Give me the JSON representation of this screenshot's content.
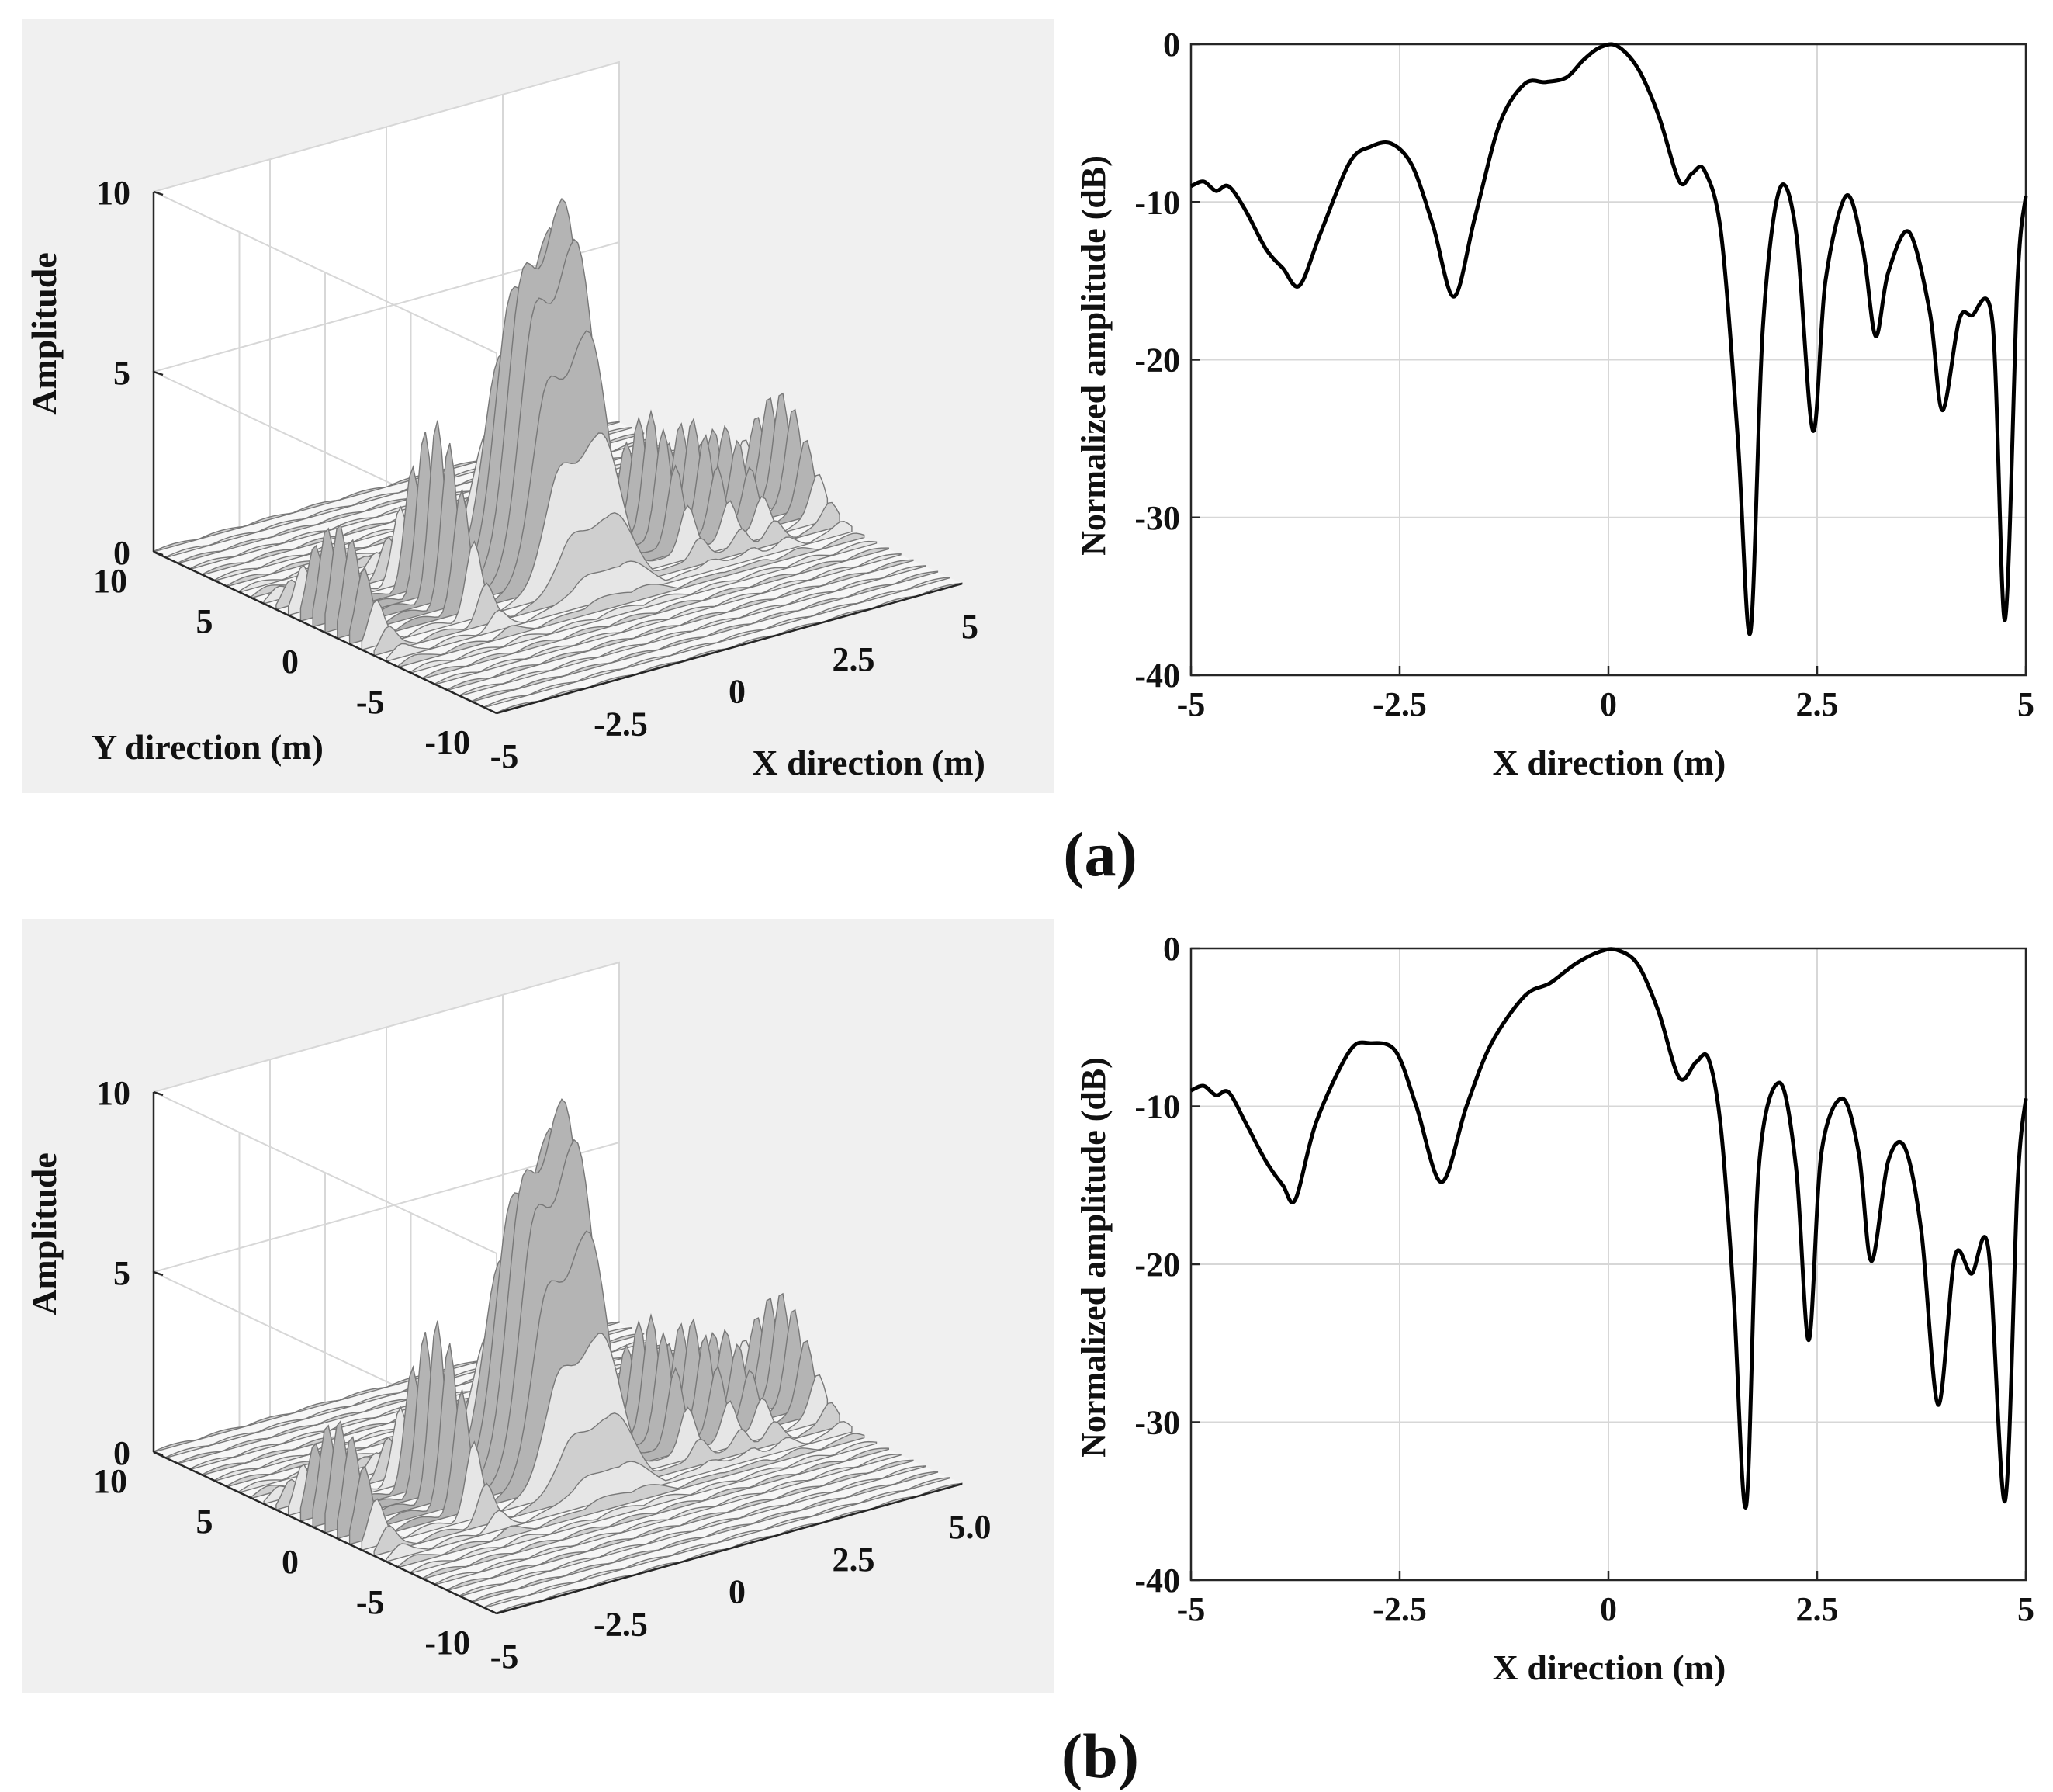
{
  "colors": {
    "panel_bg": "#f0f0f0",
    "grid": "#d7d7d7",
    "axis": "#262626",
    "line": "#000000",
    "surface_light": "#e6e6e6",
    "surface_mid": "#b4b4b4",
    "surface_dark": "#787878"
  },
  "panel_labels": {
    "a": "(a)",
    "b": "(b)"
  },
  "chart_data": [
    {
      "id": "a-3d",
      "type": "surface3d",
      "title": "",
      "zlabel": "Amplitude",
      "ylabel": "Y direction (m)",
      "xlabel": "X direction (m)",
      "z_ticks": [
        "0",
        "5",
        "10"
      ],
      "y_ticks": [
        "10",
        "5",
        "0",
        "-5",
        "-10"
      ],
      "x_ticks": [
        "-5",
        "-2.5",
        "0",
        "2.5",
        "5"
      ],
      "zlim": [
        0,
        10
      ],
      "ylim": [
        -10,
        10
      ],
      "xlim": [
        -5,
        5
      ],
      "peaks": [
        {
          "x": 0.1,
          "amplitude": 10.0
        },
        {
          "x": -0.8,
          "amplitude": 7.2
        },
        {
          "x": -2.6,
          "amplitude": 4.8
        },
        {
          "x": -4.7,
          "amplitude": 2.7
        },
        {
          "x": 2.0,
          "amplitude": 3.6
        },
        {
          "x": 2.9,
          "amplitude": 3.0
        },
        {
          "x": 3.6,
          "amplitude": 2.4
        },
        {
          "x": 4.8,
          "amplitude": 3.0
        }
      ]
    },
    {
      "id": "a-2d",
      "type": "line",
      "title": "",
      "xlabel": "X direction (m)",
      "ylabel": "Normalized amplitude (dB)",
      "xlim": [
        -5,
        5
      ],
      "ylim": [
        -40,
        0
      ],
      "x_ticks": [
        "-5",
        "-2.5",
        "0",
        "2.5",
        "5"
      ],
      "y_ticks": [
        "0",
        "-10",
        "-20",
        "-30",
        "-40"
      ],
      "grid": true,
      "series": [
        {
          "name": "profile",
          "x": [
            -5,
            -4.85,
            -4.7,
            -4.55,
            -4.35,
            -4.1,
            -3.9,
            -3.7,
            -3.45,
            -3.1,
            -2.85,
            -2.6,
            -2.35,
            -2.1,
            -1.85,
            -1.6,
            -1.3,
            -1.0,
            -0.75,
            -0.5,
            -0.3,
            -0.1,
            0.1,
            0.35,
            0.6,
            0.85,
            1.0,
            1.15,
            1.35,
            1.55,
            1.7,
            1.85,
            2.05,
            2.25,
            2.45,
            2.6,
            2.85,
            3.05,
            3.2,
            3.35,
            3.6,
            3.85,
            4.0,
            4.2,
            4.35,
            4.6,
            4.75,
            4.9,
            5.0
          ],
          "y": [
            -9.0,
            -8.7,
            -9.3,
            -9.0,
            -10.5,
            -13.0,
            -14.2,
            -15.3,
            -12.0,
            -7.5,
            -6.5,
            -6.3,
            -7.7,
            -11.5,
            -16.0,
            -11.0,
            -5.0,
            -2.5,
            -2.4,
            -2.1,
            -1.0,
            -0.2,
            -0.1,
            -1.5,
            -4.5,
            -8.7,
            -8.2,
            -8.0,
            -12.0,
            -25.0,
            -37.3,
            -18.0,
            -9.2,
            -12.0,
            -24.5,
            -15.0,
            -9.6,
            -13.0,
            -18.5,
            -14.5,
            -11.9,
            -17.0,
            -23.2,
            -17.5,
            -17.2,
            -17.6,
            -36.5,
            -15.0,
            -9.6
          ]
        }
      ]
    },
    {
      "id": "b-3d",
      "type": "surface3d",
      "title": "",
      "zlabel": "Amplitude",
      "ylabel": "",
      "xlabel": "",
      "z_ticks": [
        "0",
        "5",
        "10"
      ],
      "y_ticks": [
        "10",
        "5",
        "0",
        "-5",
        "-10"
      ],
      "x_ticks": [
        "-5",
        "-2.5",
        "0",
        "2.5",
        "5.0"
      ],
      "zlim": [
        0,
        10
      ],
      "ylim": [
        -10,
        10
      ],
      "xlim": [
        -5,
        5
      ],
      "peaks": [
        {
          "x": 0.1,
          "amplitude": 10.0
        },
        {
          "x": -0.8,
          "amplitude": 7.0
        },
        {
          "x": -2.6,
          "amplitude": 4.8
        },
        {
          "x": -4.7,
          "amplitude": 2.8
        },
        {
          "x": 2.0,
          "amplitude": 3.5
        },
        {
          "x": 2.9,
          "amplitude": 3.0
        },
        {
          "x": 3.6,
          "amplitude": 2.3
        },
        {
          "x": 4.8,
          "amplitude": 3.0
        }
      ]
    },
    {
      "id": "b-2d",
      "type": "line",
      "title": "",
      "xlabel": "X direction (m)",
      "ylabel": "Normalized amplitude (dB)",
      "xlim": [
        -5,
        5
      ],
      "ylim": [
        -40,
        0
      ],
      "x_ticks": [
        "-5",
        "-2.5",
        "0",
        "2.5",
        "5"
      ],
      "y_ticks": [
        "0",
        "-10",
        "-20",
        "-30",
        "-40"
      ],
      "grid": true,
      "series": [
        {
          "name": "profile",
          "x": [
            -5,
            -4.85,
            -4.7,
            -4.55,
            -4.35,
            -4.1,
            -3.9,
            -3.75,
            -3.5,
            -3.1,
            -2.85,
            -2.55,
            -2.3,
            -2.0,
            -1.7,
            -1.4,
            -1.0,
            -0.7,
            -0.4,
            -0.1,
            0.1,
            0.35,
            0.6,
            0.85,
            1.05,
            1.2,
            1.35,
            1.5,
            1.65,
            1.8,
            2.05,
            2.25,
            2.4,
            2.55,
            2.8,
            3.0,
            3.15,
            3.35,
            3.55,
            3.75,
            3.95,
            4.15,
            4.35,
            4.55,
            4.75,
            4.9,
            5.0
          ],
          "y": [
            -9.0,
            -8.7,
            -9.3,
            -9.1,
            -11.0,
            -13.5,
            -15.0,
            -15.9,
            -11.0,
            -6.5,
            -6.0,
            -6.5,
            -10.0,
            -14.8,
            -10.0,
            -6.0,
            -3.0,
            -2.2,
            -1.0,
            -0.2,
            -0.1,
            -1.0,
            -4.0,
            -8.2,
            -7.2,
            -7.0,
            -11.5,
            -22.0,
            -35.3,
            -14.0,
            -8.5,
            -14.0,
            -24.8,
            -13.0,
            -9.5,
            -13.0,
            -19.8,
            -13.5,
            -12.6,
            -18.0,
            -28.9,
            -19.5,
            -20.6,
            -19.0,
            -35.0,
            -15.0,
            -9.5
          ]
        }
      ]
    }
  ]
}
